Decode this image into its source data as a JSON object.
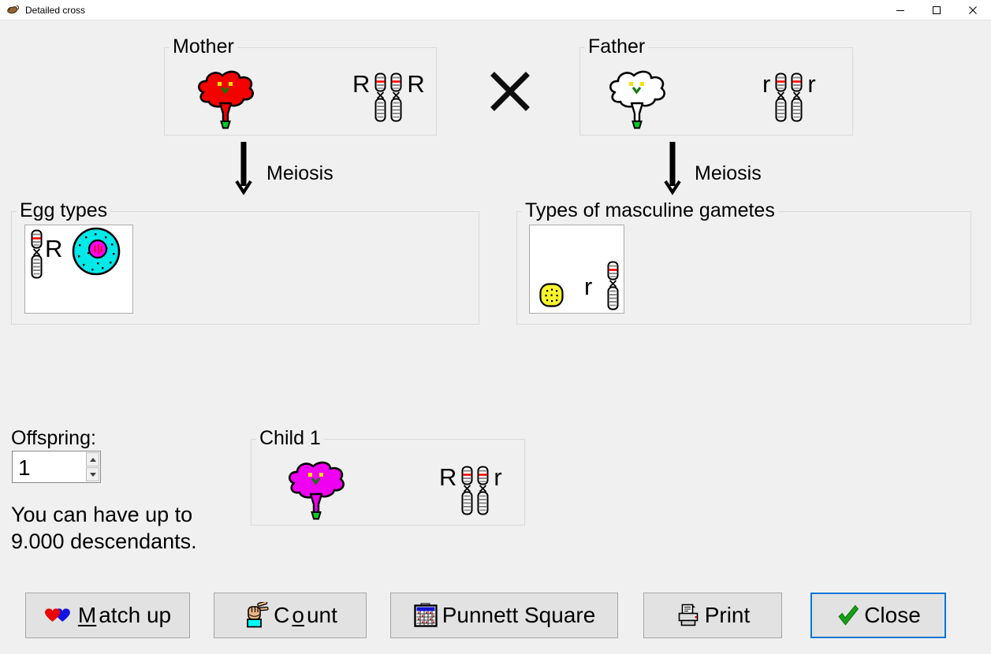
{
  "window": {
    "title": "Detailed cross"
  },
  "parents": {
    "mother": {
      "label": "Mother",
      "left_allele": "R",
      "right_allele": "R"
    },
    "father": {
      "label": "Father",
      "left_allele": "r",
      "right_allele": "r"
    },
    "cross_symbol": "×"
  },
  "meiosis": {
    "mother_label": "Meiosis",
    "father_label": "Meiosis"
  },
  "gametes": {
    "egg": {
      "box_label": "Egg types",
      "allele": "R"
    },
    "pollen": {
      "box_label": "Types of masculine gametes",
      "allele": "r"
    }
  },
  "offspring": {
    "label": "Offspring:",
    "value": "1",
    "note_line1": "You can have up to",
    "note_line2": "9.000 descendants."
  },
  "child": {
    "label": "Child 1",
    "left_allele": "R",
    "right_allele": "r"
  },
  "buttons": {
    "match_up": {
      "pre": "",
      "mnemonic": "M",
      "post": "atch up"
    },
    "count": {
      "pre": "C",
      "mnemonic": "o",
      "post": "unt"
    },
    "punnett": {
      "label": "Punnett Square"
    },
    "print": {
      "label": "Print"
    },
    "close": {
      "label": "Close"
    }
  },
  "icons": {
    "app": "mouse-icon",
    "match_up": "two-hearts-icon",
    "count": "counting-hand-icon",
    "punnett": "grid-table-icon",
    "print": "printer-icon",
    "close": "green-check-icon"
  },
  "colors": {
    "mother_flower": "#f40000",
    "father_flower": "#ffffff",
    "child_flower": "#f000f0",
    "egg_cell": "#00e9e9",
    "egg_nucleus": "#ff00ff",
    "pollen_grain": "#f8f52e",
    "accent_focus": "#0078d7"
  }
}
